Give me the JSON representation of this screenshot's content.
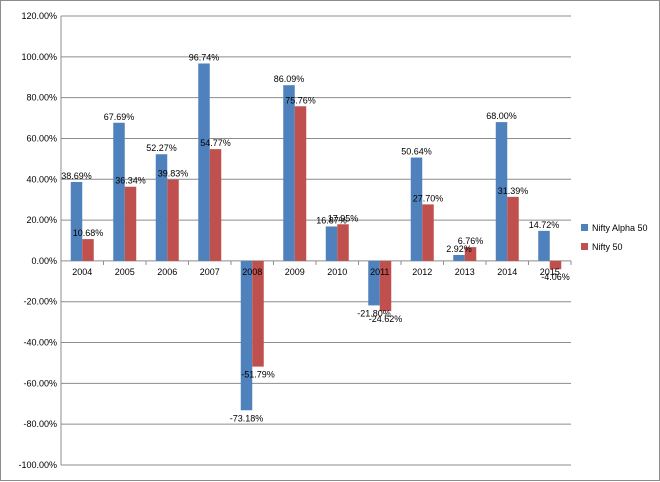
{
  "chart_data": {
    "type": "bar",
    "categories": [
      "2004",
      "2005",
      "2006",
      "2007",
      "2008",
      "2009",
      "2010",
      "2011",
      "2012",
      "2013",
      "2014",
      "2015"
    ],
    "series": [
      {
        "name": "Nifty Alpha 50",
        "color": "#4F81BD",
        "values": [
          38.69,
          67.69,
          52.27,
          96.74,
          -73.18,
          86.09,
          16.87,
          -21.8,
          50.64,
          2.92,
          68.0,
          14.72
        ],
        "labels": [
          "38.69%",
          "67.69%",
          "52.27%",
          "96.74%",
          "-73.18%",
          "86.09%",
          "16.87%",
          "-21.80%",
          "50.64%",
          "2.92%",
          "68.00%",
          "14.72%"
        ]
      },
      {
        "name": "Nifty 50",
        "color": "#C0504D",
        "values": [
          10.68,
          36.34,
          39.83,
          54.77,
          -51.79,
          75.76,
          17.95,
          -24.62,
          27.7,
          6.76,
          31.39,
          -4.06
        ],
        "labels": [
          "10.68%",
          "36.34%",
          "39.83%",
          "54.77%",
          "-51.79%",
          "75.76%",
          "17.95%",
          "-24.62%",
          "27.70%",
          "6.76%",
          "31.39%",
          "-4.06%"
        ]
      }
    ],
    "ylim": [
      -100,
      120
    ],
    "yticks": [
      "120.00%",
      "100.00%",
      "80.00%",
      "60.00%",
      "40.00%",
      "20.00%",
      "0.00%",
      "-20.00%",
      "-40.00%",
      "-60.00%",
      "-80.00%",
      "-100.00%"
    ],
    "ytick_values": [
      120,
      100,
      80,
      60,
      40,
      20,
      0,
      -20,
      -40,
      -60,
      -80,
      -100
    ],
    "grid": true,
    "legend_position": "right",
    "title": "",
    "xlabel": "",
    "ylabel": ""
  }
}
